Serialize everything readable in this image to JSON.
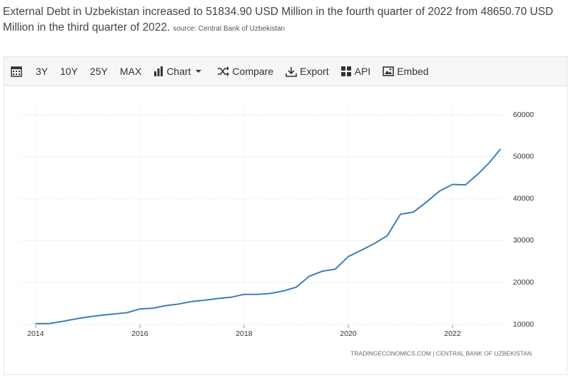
{
  "headline": "External Debt in Uzbekistan increased to 51834.90 USD Million in the fourth quarter of 2022 from 48650.70 USD Million in the third quarter of 2022.",
  "source": "source: Central Bank of Uzbekistan",
  "toolbar": [
    "3Y",
    "10Y",
    "25Y",
    "MAX",
    "Chart",
    "Compare",
    "Export",
    "API",
    "Embed"
  ],
  "chart_data": {
    "type": "line",
    "color": "#3f7fb6",
    "x": [
      2014.0,
      2014.25,
      2014.5,
      2014.75,
      2015.0,
      2015.25,
      2015.5,
      2015.75,
      2016.0,
      2016.25,
      2016.5,
      2016.75,
      2017.0,
      2017.25,
      2017.5,
      2017.75,
      2018.0,
      2018.25,
      2018.5,
      2018.75,
      2019.0,
      2019.25,
      2019.5,
      2019.75,
      2020.0,
      2020.25,
      2020.5,
      2020.75,
      2021.0,
      2021.25,
      2021.5,
      2021.75,
      2022.0,
      2022.25,
      2022.5,
      2022.71,
      2022.92
    ],
    "values": [
      10200,
      10200,
      10700,
      11300,
      11800,
      12200,
      12500,
      12800,
      13700,
      13900,
      14500,
      14900,
      15500,
      15800,
      16200,
      16500,
      17200,
      17200,
      17400,
      18000,
      18900,
      21500,
      22700,
      23200,
      26200,
      27700,
      29300,
      31200,
      36300,
      36800,
      39200,
      41800,
      43400,
      43300,
      46000,
      48650.7,
      51834.9
    ],
    "xlim": [
      2013.7,
      2023
    ],
    "xticks": [
      2014,
      2016,
      2018,
      2020,
      2022
    ],
    "ylim": [
      10000,
      60000
    ],
    "yticks": [
      10000,
      20000,
      30000,
      40000,
      50000,
      60000
    ],
    "grid": true,
    "footer": "TRADINGECONOMICS.COM  |  CENTRAL BANK OF UZBEKISTAN"
  }
}
